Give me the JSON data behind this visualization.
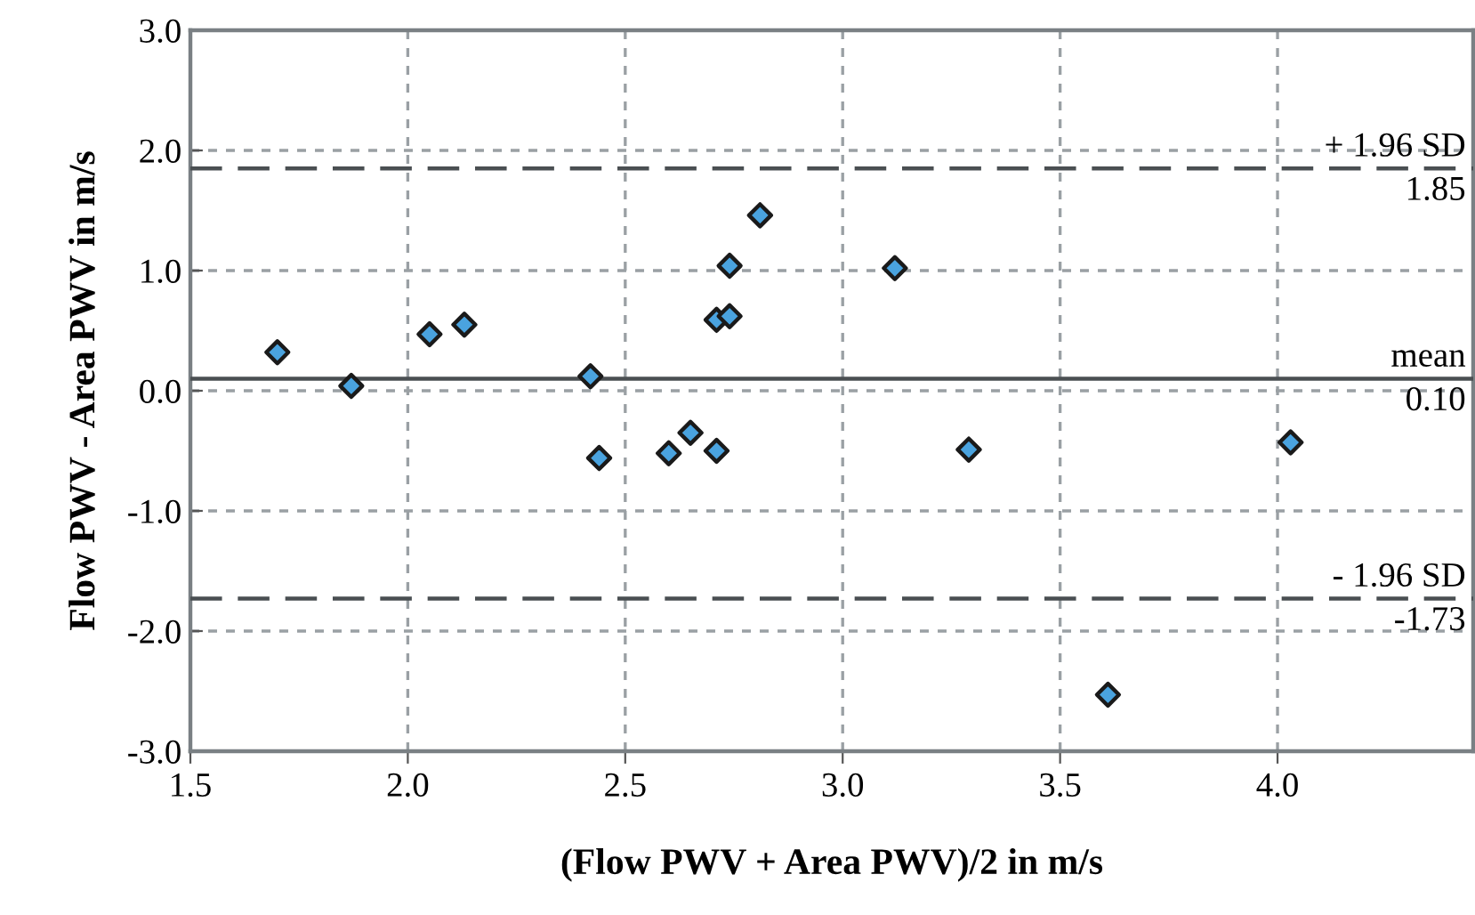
{
  "chart_data": {
    "type": "scatter",
    "xlabel": "(Flow PWV + Area PWV)/2 in m/s",
    "ylabel": "Flow PWV - Area PWV in m/s",
    "x": [
      1.7,
      1.87,
      2.05,
      2.13,
      2.42,
      2.44,
      2.6,
      2.65,
      2.71,
      2.71,
      2.74,
      2.74,
      2.81,
      3.12,
      3.29,
      3.61,
      4.03
    ],
    "series": [
      {
        "color": "#4aa3df",
        "values": [
          0.32,
          0.04,
          0.47,
          0.55,
          0.12,
          -0.56,
          -0.52,
          -0.35,
          -0.5,
          0.59,
          0.62,
          1.04,
          1.46,
          1.02,
          -0.49,
          -2.53,
          -0.43
        ]
      }
    ],
    "marker": "diamond",
    "xlim": [
      1.5,
      4.45
    ],
    "xticks": [
      {
        "value": 1.5,
        "label": "1.5"
      },
      {
        "value": 2,
        "label": "2.0"
      },
      {
        "value": 2.5,
        "label": "2.5"
      },
      {
        "value": 3,
        "label": "3.0"
      },
      {
        "value": 3.5,
        "label": "3.5"
      },
      {
        "value": 4,
        "label": "4.0"
      }
    ],
    "ylim": [
      -3,
      3
    ],
    "yticks": [
      {
        "value": -3,
        "label": "-3.0"
      },
      {
        "value": -2,
        "label": "-2.0"
      },
      {
        "value": -1,
        "label": "-1.0"
      },
      {
        "value": 0,
        "label": "0.0"
      },
      {
        "value": 1,
        "label": "1.0"
      },
      {
        "value": 2,
        "label": "2.0"
      },
      {
        "value": 3,
        "label": "3.0"
      }
    ],
    "grid": true,
    "annotations": [
      {
        "text": "1.85",
        "y": 1.85
      },
      {
        "text": "0.10",
        "y": 0.1
      },
      {
        "text": "-1.73",
        "y": -1.73
      }
    ],
    "ref_lines": [
      {
        "axis": "y",
        "value": 1.85,
        "label": "+ 1.96 SD",
        "line_style": "dashed",
        "color": "#4a4f52"
      },
      {
        "axis": "y",
        "value": 0.1,
        "label": "mean",
        "line_style": "solid",
        "color": "#4a4f52"
      },
      {
        "axis": "y",
        "value": -1.73,
        "label": "- 1.96 SD",
        "line_style": "dashed",
        "color": "#4a4f52"
      }
    ]
  }
}
